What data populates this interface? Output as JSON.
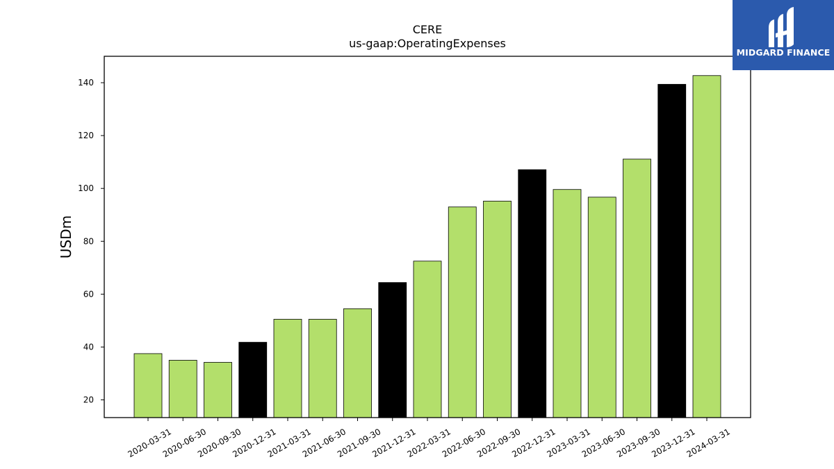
{
  "chart_data": {
    "type": "bar",
    "title": "CERE",
    "subtitle": "us-gaap:OperatingExpenses",
    "ylabel": "USDm",
    "xlabel": "",
    "ylim": [
      13.3,
      150
    ],
    "yticks": [
      20,
      40,
      60,
      80,
      100,
      120,
      140
    ],
    "categories": [
      "2020-03-31",
      "2020-06-30",
      "2020-09-30",
      "2020-12-31",
      "2021-03-31",
      "2021-06-30",
      "2021-09-30",
      "2021-12-31",
      "2022-03-31",
      "2022-06-30",
      "2022-09-30",
      "2022-12-31",
      "2023-03-31",
      "2023-06-30",
      "2023-09-30",
      "2023-12-31",
      "2024-03-31"
    ],
    "values": [
      37.5,
      35.0,
      34.2,
      41.8,
      50.5,
      50.5,
      54.5,
      64.4,
      72.5,
      93.0,
      95.2,
      107.1,
      99.6,
      96.7,
      111.1,
      139.4,
      142.7
    ],
    "bar_colors": [
      "#b3df6b",
      "#b3df6b",
      "#b3df6b",
      "#000000",
      "#b3df6b",
      "#b3df6b",
      "#b3df6b",
      "#000000",
      "#b3df6b",
      "#b3df6b",
      "#b3df6b",
      "#000000",
      "#b3df6b",
      "#b3df6b",
      "#b3df6b",
      "#000000",
      "#b3df6b"
    ],
    "grid": false,
    "legend": "none"
  },
  "colors": {
    "quarter_bar": "#b3df6b",
    "year_end_bar": "#000000",
    "logo_background": "#2b5aad"
  },
  "logo": {
    "text": "MIDGARD FINANCE",
    "icon": "midgard-logo-icon"
  }
}
